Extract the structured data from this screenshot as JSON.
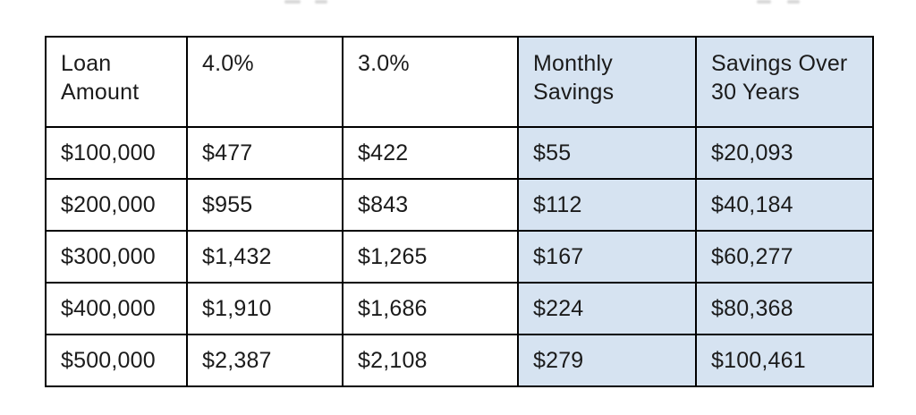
{
  "table": {
    "border_color": "#000000",
    "highlight_color": "#d6e3f1",
    "columns": [
      {
        "label": "Loan Amount",
        "highlighted": false
      },
      {
        "label": "4.0%",
        "highlighted": false
      },
      {
        "label": "3.0%",
        "highlighted": false
      },
      {
        "label": "Monthly Savings",
        "highlighted": true
      },
      {
        "label": "Savings Over 30 Years",
        "highlighted": true
      }
    ],
    "rows": [
      {
        "cells": [
          "$100,000",
          "$477",
          "$422",
          "$55",
          "$20,093"
        ]
      },
      {
        "cells": [
          "$200,000",
          "$955",
          "$843",
          "$112",
          "$40,184"
        ]
      },
      {
        "cells": [
          "$300,000",
          "$1,432",
          "$1,265",
          "$167",
          "$60,277"
        ]
      },
      {
        "cells": [
          "$400,000",
          "$1,910",
          "$1,686",
          "$224",
          "$80,368"
        ]
      },
      {
        "cells": [
          "$500,000",
          "$2,387",
          "$2,108",
          "$279",
          "$100,461"
        ]
      }
    ]
  },
  "chart_data": {
    "type": "table",
    "title": "",
    "columns": [
      "Loan Amount",
      "4.0%",
      "3.0%",
      "Monthly Savings",
      "Savings Over 30 Years"
    ],
    "highlighted_columns": [
      "Monthly Savings",
      "Savings Over 30 Years"
    ],
    "rows": [
      [
        "$100,000",
        "$477",
        "$422",
        "$55",
        "$20,093"
      ],
      [
        "$200,000",
        "$955",
        "$843",
        "$112",
        "$40,184"
      ],
      [
        "$300,000",
        "$1,432",
        "$1,265",
        "$167",
        "$60,277"
      ],
      [
        "$400,000",
        "$1,910",
        "$1,686",
        "$224",
        "$80,368"
      ],
      [
        "$500,000",
        "$2,387",
        "$2,108",
        "$279",
        "$100,461"
      ]
    ]
  }
}
